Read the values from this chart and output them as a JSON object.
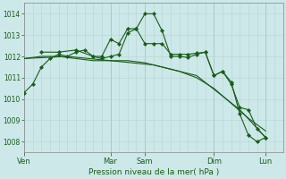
{
  "bg_color": "#cce8e8",
  "grid_color_v_major": "#b0c8c8",
  "grid_color_v_minor": "#b8d4d4",
  "grid_color_h": "#b8d4d4",
  "line_color": "#1a5c1a",
  "xlabel": "Pression niveau de la mer( hPa )",
  "ylim": [
    1007.5,
    1014.5
  ],
  "yticks": [
    1008,
    1009,
    1010,
    1011,
    1012,
    1013,
    1014
  ],
  "xlim": [
    0,
    180
  ],
  "day_labels": [
    "Ven",
    "Mar",
    "Sam",
    "Dim",
    "Lun"
  ],
  "day_positions": [
    0,
    60,
    84,
    132,
    168
  ],
  "series1_x": [
    0,
    6,
    12,
    18,
    24,
    30,
    36,
    42,
    48,
    54,
    60,
    66,
    72,
    78,
    84,
    90,
    96,
    102,
    108,
    114,
    120,
    126,
    132,
    138,
    144,
    150,
    156,
    162,
    168
  ],
  "series1_y": [
    1010.3,
    1010.7,
    1011.5,
    1011.9,
    1012.1,
    1012.0,
    1012.2,
    1012.3,
    1012.0,
    1011.9,
    1012.0,
    1012.1,
    1013.1,
    1013.3,
    1014.0,
    1014.0,
    1013.2,
    1012.0,
    1012.0,
    1011.95,
    1012.1,
    1012.2,
    1011.1,
    1011.3,
    1010.8,
    1009.3,
    1008.3,
    1008.0,
    1008.2
  ],
  "series2_x": [
    0,
    12,
    24,
    36,
    48,
    60,
    72,
    84,
    96,
    108,
    120,
    132,
    144,
    156,
    168
  ],
  "series2_y": [
    1011.9,
    1012.0,
    1012.0,
    1011.9,
    1011.8,
    1011.8,
    1011.8,
    1011.7,
    1011.5,
    1011.3,
    1011.0,
    1010.5,
    1009.8,
    1009.1,
    1008.5
  ],
  "series3_x": [
    0,
    30,
    60,
    90,
    120,
    150,
    168
  ],
  "series3_y": [
    1011.9,
    1012.0,
    1011.8,
    1011.6,
    1011.1,
    1009.5,
    1008.2
  ],
  "series4_x": [
    12,
    24,
    36,
    48,
    54,
    60,
    66,
    72,
    78,
    84,
    90,
    96,
    102,
    108,
    114,
    120,
    126,
    132,
    138,
    144,
    150,
    156,
    162,
    168
  ],
  "series4_y": [
    1012.2,
    1012.2,
    1012.3,
    1012.0,
    1012.0,
    1012.8,
    1012.6,
    1013.3,
    1013.3,
    1012.6,
    1012.6,
    1012.6,
    1012.1,
    1012.1,
    1012.1,
    1012.15,
    1012.2,
    1011.1,
    1011.3,
    1010.7,
    1009.6,
    1009.5,
    1008.6,
    1008.2
  ]
}
